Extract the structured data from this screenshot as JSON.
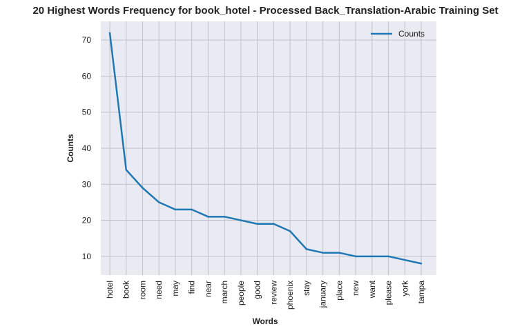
{
  "chart_data": {
    "type": "line",
    "title": "20 Highest Words Frequency for book_hotel - Processed Back_Translation-Arabic Training Set",
    "xlabel": "Words",
    "ylabel": "Counts",
    "categories": [
      "hotel",
      "book",
      "room",
      "need",
      "may",
      "find",
      "near",
      "march",
      "people",
      "good",
      "review",
      "phoenix",
      "stay",
      "january",
      "place",
      "new",
      "want",
      "please",
      "york",
      "tampa"
    ],
    "series": [
      {
        "name": "Counts",
        "color": "#1f77b4",
        "values": [
          72,
          34,
          29,
          25,
          23,
          23,
          21,
          21,
          20,
          19,
          19,
          17,
          12,
          11,
          11,
          10,
          10,
          10,
          9,
          8
        ]
      }
    ],
    "yticks": [
      10,
      20,
      30,
      40,
      50,
      60,
      70
    ],
    "ylim": [
      4.8,
      75.2
    ],
    "grid": true,
    "legend_position": "upper right"
  }
}
